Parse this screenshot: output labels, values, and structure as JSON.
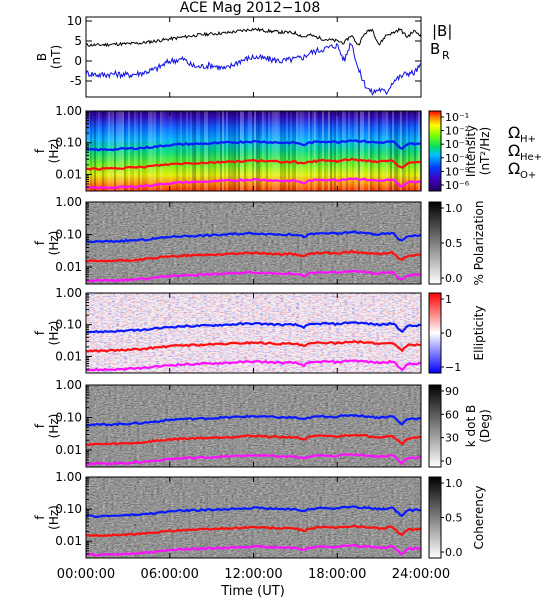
{
  "title": "ACE Mag 2012−108",
  "xlabel": "Time (UT)",
  "x_tick_labels": [
    "00:00:00",
    "06:00:00",
    "12:00:00",
    "18:00:00",
    "24:00:00"
  ],
  "x_range_hours": [
    0,
    24
  ],
  "colors": {
    "bmag": "#000000",
    "br": "#1010e0",
    "hplus": "#0a1aff",
    "heplus": "#ff1010",
    "oplus": "#ff10ff",
    "axis": "#000000"
  },
  "chart_data": [
    {
      "type": "line",
      "panel": "B field",
      "ylabel": "B (nT)",
      "ylim": [
        -9,
        11
      ],
      "y_ticks": [
        -5,
        0,
        5,
        10
      ],
      "legend": [
        {
          "label": "|B|",
          "color": "#000000"
        },
        {
          "label": "B",
          "sub": "R",
          "color": "#1010e0"
        }
      ],
      "series": [
        {
          "name": "|B|",
          "x_hours": [
            0,
            1,
            2,
            3,
            4,
            5,
            6,
            7,
            8,
            9,
            10,
            11,
            12,
            13,
            14,
            15,
            15.6,
            16,
            17,
            18,
            18.5,
            19,
            19.5,
            20,
            20.5,
            21,
            21.5,
            22,
            22.5,
            23,
            23.5,
            24
          ],
          "values": [
            4,
            4,
            4.2,
            4.3,
            4.5,
            5,
            5.5,
            6,
            6.5,
            6.8,
            7,
            7.5,
            8,
            7.5,
            7.2,
            7,
            6,
            6.5,
            5.5,
            5,
            4.5,
            6.5,
            4,
            7,
            8,
            4,
            6.5,
            7,
            8,
            6,
            7.5,
            6.5
          ]
        },
        {
          "name": "B_R",
          "x_hours": [
            0,
            1,
            2,
            3,
            4,
            5,
            6,
            7,
            7.5,
            8,
            9,
            10,
            11,
            12,
            13,
            14,
            15,
            15.6,
            16,
            17,
            18,
            18.5,
            19,
            19.5,
            20,
            20.5,
            21,
            21.5,
            22,
            22.5,
            23,
            23.5,
            24
          ],
          "values": [
            -3,
            -3.5,
            -3.2,
            -3.5,
            -3,
            -2,
            0,
            0.5,
            -1,
            -1.5,
            -1,
            -2,
            0,
            1,
            0.5,
            0,
            0.5,
            1,
            2,
            3,
            4,
            0,
            5,
            -2,
            -6,
            -8,
            -7,
            -8,
            -5,
            -4,
            -3,
            -3,
            -1
          ]
        }
      ]
    },
    {
      "type": "heatmap",
      "panel": "Intensity",
      "ylabel": "f (Hz)",
      "yscale": "log",
      "ylim": [
        0.003,
        1.0
      ],
      "y_tick_labels": [
        "1.00",
        "0.10",
        "0.01"
      ],
      "colorbar_label": "Intensity (nT²/Hz)",
      "colorbar_ticks": [
        "10⁻¹",
        "10⁻²",
        "10⁻³",
        "10⁻⁴",
        "10⁻⁵",
        "10⁻⁶"
      ],
      "colormap": "rainbow",
      "legend": [
        {
          "label": "Ω",
          "sub": "H+",
          "color": "#0a1aff"
        },
        {
          "label": "Ω",
          "sub": "He+",
          "color": "#ff1010"
        },
        {
          "label": "Ω",
          "sub": "O+",
          "color": "#ff10ff"
        }
      ]
    },
    {
      "type": "heatmap",
      "panel": "Polarization",
      "ylabel": "f (Hz)",
      "yscale": "log",
      "ylim": [
        0.003,
        1.0
      ],
      "y_tick_labels": [
        "1.00",
        "0.10",
        "0.01"
      ],
      "colorbar_label": "% Polarization",
      "colorbar_ticks": [
        "1.0",
        "0.5",
        "0.0"
      ],
      "colormap": "gray"
    },
    {
      "type": "heatmap",
      "panel": "Ellipticity",
      "ylabel": "f (Hz)",
      "yscale": "log",
      "ylim": [
        0.003,
        1.0
      ],
      "y_tick_labels": [
        "1.00",
        "0.10",
        "0.01"
      ],
      "colorbar_label": "Ellipticity",
      "colorbar_ticks": [
        "1",
        "0",
        "−1"
      ],
      "colormap": "red-white-blue"
    },
    {
      "type": "heatmap",
      "panel": "k dot B",
      "ylabel": "f (Hz)",
      "yscale": "log",
      "ylim": [
        0.003,
        1.0
      ],
      "y_tick_labels": [
        "1.00",
        "0.10",
        "0.01"
      ],
      "colorbar_label": "k dot B (Deg)",
      "colorbar_ticks": [
        "90",
        "60",
        "30",
        "0"
      ],
      "colormap": "gray"
    },
    {
      "type": "heatmap",
      "panel": "Coherency",
      "ylabel": "f (Hz)",
      "yscale": "log",
      "ylim": [
        0.003,
        1.0
      ],
      "y_tick_labels": [
        "1.00",
        "0.10",
        "0.01"
      ],
      "colorbar_label": "Coherency",
      "colorbar_ticks": [
        "1.0",
        "0.5",
        "0.0"
      ],
      "colormap": "gray"
    }
  ],
  "gyrofrequencies": {
    "x_hours": [
      0,
      1,
      2,
      3,
      4,
      5,
      6,
      7,
      8,
      9,
      10,
      11,
      12,
      13,
      14,
      15,
      15.6,
      16,
      17,
      18,
      19,
      20,
      21,
      22,
      22.6,
      23,
      24
    ],
    "H+": [
      0.06,
      0.06,
      0.062,
      0.065,
      0.068,
      0.075,
      0.085,
      0.09,
      0.092,
      0.095,
      0.1,
      0.105,
      0.11,
      0.105,
      0.1,
      0.1,
      0.085,
      0.1,
      0.11,
      0.105,
      0.12,
      0.11,
      0.1,
      0.11,
      0.06,
      0.09,
      0.095
    ],
    "He+": [
      0.015,
      0.015,
      0.0155,
      0.016,
      0.017,
      0.019,
      0.021,
      0.0225,
      0.023,
      0.024,
      0.025,
      0.026,
      0.0275,
      0.026,
      0.025,
      0.025,
      0.021,
      0.025,
      0.0275,
      0.026,
      0.03,
      0.0275,
      0.025,
      0.0275,
      0.015,
      0.0225,
      0.024
    ],
    "O+": [
      0.0038,
      0.0038,
      0.0039,
      0.004,
      0.0043,
      0.0047,
      0.0053,
      0.0056,
      0.0058,
      0.006,
      0.0063,
      0.0066,
      0.0069,
      0.0066,
      0.0063,
      0.0063,
      0.0053,
      0.0063,
      0.0069,
      0.0066,
      0.0075,
      0.0069,
      0.0063,
      0.0069,
      0.0038,
      0.0056,
      0.006
    ]
  }
}
